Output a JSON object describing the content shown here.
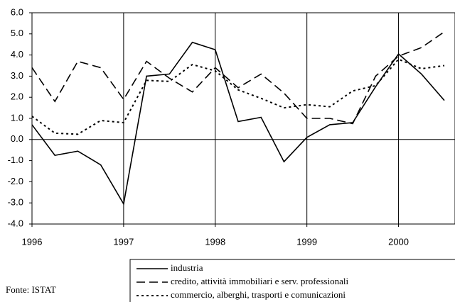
{
  "chart_data": {
    "type": "line",
    "x": [
      1996,
      1996.25,
      1996.5,
      1996.75,
      1997,
      1997.25,
      1997.5,
      1997.75,
      1998,
      1998.25,
      1998.5,
      1998.75,
      1999,
      1999.25,
      1999.5,
      1999.75,
      2000,
      2000.25,
      2000.5
    ],
    "series": [
      {
        "name": "industria",
        "color": "#000000",
        "style": "solid",
        "values": [
          0.7,
          -0.75,
          -0.55,
          -1.2,
          -3.05,
          3.0,
          3.1,
          4.6,
          4.25,
          0.85,
          1.05,
          -1.05,
          0.1,
          0.7,
          0.8,
          2.5,
          4.05,
          3.1,
          1.85
        ]
      },
      {
        "name": "credito, attività immobiliari e serv. professionali",
        "color": "#000000",
        "style": "dashed",
        "values": [
          3.4,
          1.8,
          3.7,
          3.4,
          1.9,
          3.7,
          2.9,
          2.25,
          3.4,
          2.45,
          3.1,
          2.2,
          1.0,
          1.0,
          0.75,
          3.0,
          3.95,
          4.35,
          5.1
        ]
      },
      {
        "name": "commercio, alberghi, trasporti e comunicazioni",
        "color": "#000000",
        "style": "dotted",
        "values": [
          1.1,
          0.3,
          0.25,
          0.9,
          0.8,
          2.8,
          2.75,
          3.55,
          3.25,
          2.35,
          1.95,
          1.5,
          1.65,
          1.55,
          2.3,
          2.55,
          3.8,
          3.35,
          3.5
        ]
      }
    ],
    "xlim": [
      1996,
      2000.5
    ],
    "xticks": [
      1996,
      1997,
      1998,
      1999,
      2000
    ],
    "ylim": [
      -4,
      6
    ],
    "yticks": [
      {
        "value": 6,
        "label": "6.0"
      },
      {
        "value": 5,
        "label": "5.0"
      },
      {
        "value": 4,
        "label": "4.0"
      },
      {
        "value": 3,
        "label": "3.0"
      },
      {
        "value": 2,
        "label": "2.0"
      },
      {
        "value": 1,
        "label": "1.0"
      },
      {
        "value": 0,
        "label": "0.0"
      },
      {
        "value": -1,
        "label": "-1.0"
      },
      {
        "value": -2,
        "label": "-2.0"
      },
      {
        "value": -3,
        "label": "-3.0"
      },
      {
        "value": -4,
        "label": "-4.0"
      }
    ],
    "source": "Fonte: ISTAT"
  }
}
